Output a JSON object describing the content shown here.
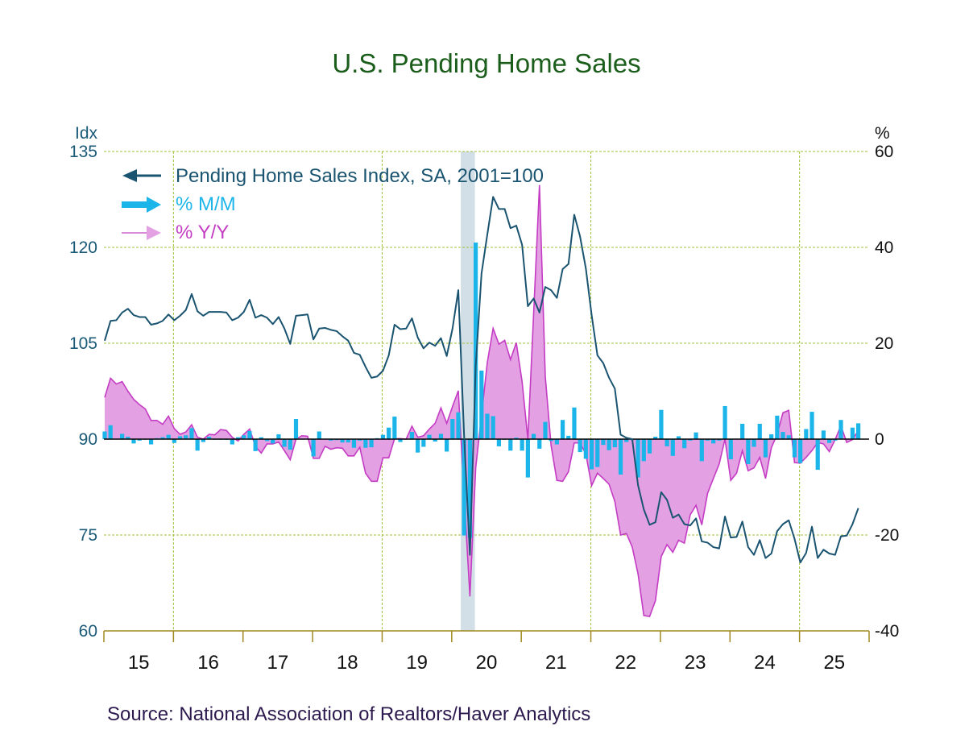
{
  "chart_data": {
    "type": "bar+line+area",
    "title": "U.S. Pending Home Sales",
    "source": "Source:  National Association of Realtors/Haver Analytics",
    "left_axis": {
      "unit_label": "Idx",
      "range": [
        60,
        135
      ],
      "ticks": [
        "135",
        "120",
        "105",
        "90",
        "75",
        "60"
      ]
    },
    "right_axis": {
      "unit_label": "%",
      "range": [
        -40,
        60
      ],
      "ticks": [
        "60",
        "40",
        "20",
        "0",
        "-20",
        "-40"
      ]
    },
    "x_axis": {
      "tick_labels": [
        "15",
        "16",
        "17",
        "18",
        "19",
        "20",
        "21",
        "22",
        "23",
        "24",
        "25"
      ],
      "start": "2015-01",
      "frequency": "monthly"
    },
    "grid": true,
    "legend_placement": "top-left",
    "recession_shading": {
      "start": "2020-02",
      "end": "2020-04",
      "color": "#d3dfe6"
    },
    "colors": {
      "index": "#1a5470",
      "mm": "#1cb5ea",
      "yy_fill": "#e3a0e3",
      "yy_line": "#c43cc4",
      "grid": "#9ec23a",
      "axis": "#a08a20"
    },
    "series": [
      {
        "name": "Pending Home Sales Index, SA, 2001=100",
        "axis": "left",
        "kind": "line",
        "values": [
          105.4,
          108.5,
          108.6,
          109.8,
          110.4,
          109.4,
          109.1,
          109.1,
          107.9,
          108.1,
          108.5,
          109.5,
          108.6,
          109.3,
          110.2,
          112.7,
          110.0,
          109.3,
          109.9,
          109.9,
          109.9,
          109.8,
          108.6,
          109.0,
          109.9,
          111.8,
          109.0,
          109.4,
          109.0,
          108.0,
          109.1,
          107.3,
          104.9,
          109.3,
          109.4,
          109.5,
          105.6,
          107.3,
          107.4,
          107.1,
          106.9,
          106.1,
          105.4,
          103.5,
          103.2,
          101.3,
          99.6,
          99.8,
          100.7,
          103.1,
          107.9,
          107.2,
          107.3,
          108.9,
          105.9,
          104.2,
          105.1,
          104.6,
          105.8,
          103.0,
          107.3,
          113.3,
          90.5,
          71.9,
          101.4,
          115.9,
          122.0,
          127.9,
          126.0,
          126.0,
          123.0,
          123.4,
          120.4,
          110.8,
          112.0,
          109.8,
          113.8,
          113.3,
          112.1,
          116.6,
          117.4,
          125.1,
          121.7,
          116.7,
          109.4,
          103.1,
          101.9,
          99.6,
          97.9,
          90.7,
          90.2,
          90.0,
          82.8,
          79.0,
          76.6,
          77.0,
          81.7,
          80.5,
          77.7,
          78.2,
          76.7,
          76.5,
          77.6,
          74.0,
          73.8,
          73.1,
          72.9,
          77.9,
          74.6,
          74.7,
          77.1,
          73.1,
          71.9,
          74.2,
          71.4,
          72.1,
          75.6,
          76.7,
          77.3,
          74.4,
          70.7,
          72.2,
          76.3,
          71.4,
          72.7,
          72.1,
          71.9,
          74.8,
          74.9,
          76.7,
          79.2
        ]
      },
      {
        "name": "% M/M",
        "axis": "right",
        "kind": "bar",
        "values": [
          1.6,
          2.9,
          0.1,
          1.1,
          0.5,
          -0.9,
          -0.3,
          0.0,
          -1.1,
          0.2,
          0.4,
          0.9,
          -0.8,
          0.6,
          0.8,
          2.3,
          -2.4,
          -0.6,
          0.5,
          0.0,
          0.0,
          -0.1,
          -1.1,
          0.4,
          0.8,
          1.7,
          -2.5,
          0.4,
          -0.4,
          -0.9,
          1.0,
          -1.6,
          -2.2,
          4.2,
          0.1,
          0.1,
          -3.6,
          1.6,
          0.1,
          -0.3,
          -0.2,
          -0.7,
          -0.7,
          -1.8,
          -0.3,
          -1.8,
          -1.7,
          0.2,
          0.9,
          2.4,
          4.7,
          -0.6,
          0.1,
          1.5,
          -2.8,
          -1.6,
          0.9,
          -0.5,
          1.1,
          -2.6,
          4.2,
          5.6,
          -20.1,
          -20.6,
          41.0,
          14.3,
          5.3,
          4.8,
          -1.5,
          0.0,
          -2.4,
          0.3,
          -2.4,
          -8.0,
          1.1,
          -2.0,
          3.6,
          -0.4,
          -1.1,
          4.0,
          0.7,
          6.6,
          -2.7,
          -4.1,
          -6.3,
          -5.8,
          -1.2,
          -2.3,
          -1.7,
          -7.4,
          -0.6,
          -0.2,
          -8.0,
          -4.6,
          -3.0,
          0.5,
          6.1,
          -1.5,
          -3.5,
          0.6,
          -1.9,
          -0.3,
          1.4,
          -4.6,
          -0.3,
          -0.9,
          -0.3,
          6.9,
          -4.2,
          0.1,
          3.2,
          -5.2,
          -1.6,
          3.2,
          -3.8,
          1.0,
          4.9,
          1.5,
          0.8,
          -3.8,
          -5.0,
          2.1,
          5.7,
          -6.4,
          1.8,
          -0.8,
          -0.3,
          4.0,
          0.1,
          2.4,
          3.3
        ]
      },
      {
        "name": "% Y/Y",
        "axis": "right",
        "kind": "area",
        "values": [
          8.7,
          12.7,
          11.5,
          12.0,
          10.0,
          8.3,
          7.2,
          6.3,
          3.9,
          3.9,
          3.1,
          4.8,
          2.2,
          1.0,
          1.5,
          3.0,
          0.4,
          0.0,
          1.0,
          0.9,
          2.0,
          1.8,
          0.4,
          -0.4,
          1.0,
          2.1,
          -1.5,
          -2.9,
          -1.0,
          -1.0,
          -0.6,
          -2.4,
          -4.3,
          0.0,
          0.7,
          0.6,
          -4.0,
          -4.0,
          -1.5,
          -2.1,
          -1.8,
          -1.9,
          -3.5,
          -3.5,
          -1.7,
          -7.1,
          -8.8,
          -8.8,
          -3.9,
          -3.9,
          0.1,
          0.1,
          0.0,
          2.7,
          0.4,
          0.7,
          2.1,
          3.3,
          6.5,
          3.3,
          6.8,
          10.1,
          -11.8,
          -32.8,
          -6.0,
          5.0,
          16.0,
          23.1,
          19.8,
          20.6,
          16.6,
          20.1,
          12.0,
          0.0,
          26.4,
          53.0,
          13.1,
          -1.3,
          -8.6,
          -8.8,
          -6.8,
          -0.8,
          -0.8,
          -3.1,
          -9.7,
          -7.1,
          -8.2,
          -9.4,
          -13.0,
          -20.0,
          -19.7,
          -22.5,
          -28.1,
          -36.8,
          -37.0,
          -33.7,
          -24.5,
          -22.0,
          -23.6,
          -21.1,
          -21.7,
          -15.8,
          -13.8,
          -17.9,
          -11.3,
          -8.2,
          -5.2,
          0.0,
          -8.6,
          -7.1,
          -2.4,
          -6.6,
          -6.0,
          -3.8,
          -8.2,
          -1.8,
          1.0,
          5.5,
          6.0,
          -4.9,
          -5.0,
          -3.8,
          -2.4,
          -0.7,
          -1.0,
          -2.6,
          -0.1,
          2.8,
          -0.7,
          -0.1,
          1.8
        ]
      }
    ]
  }
}
